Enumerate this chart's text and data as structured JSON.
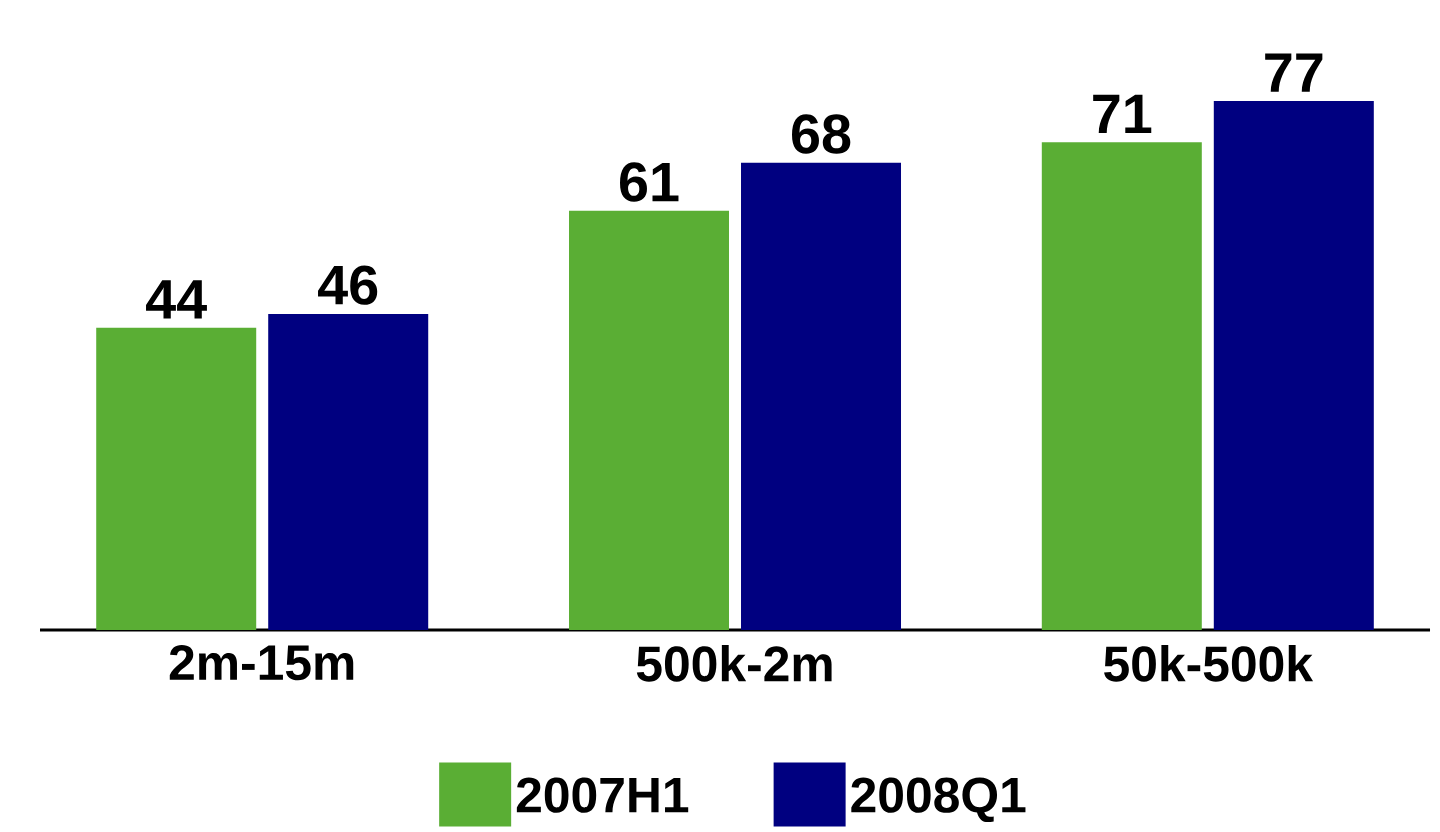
{
  "chart_data": {
    "type": "bar",
    "categories": [
      "2m-15m",
      "500k-2m",
      "50k-500k"
    ],
    "series": [
      {
        "name": "2007H1",
        "color": "#5aae34",
        "values": [
          44,
          61,
          71
        ]
      },
      {
        "name": "2008Q1",
        "color": "#000080",
        "values": [
          46,
          68,
          77
        ]
      }
    ],
    "data_labels": true,
    "legend": "bottom"
  }
}
